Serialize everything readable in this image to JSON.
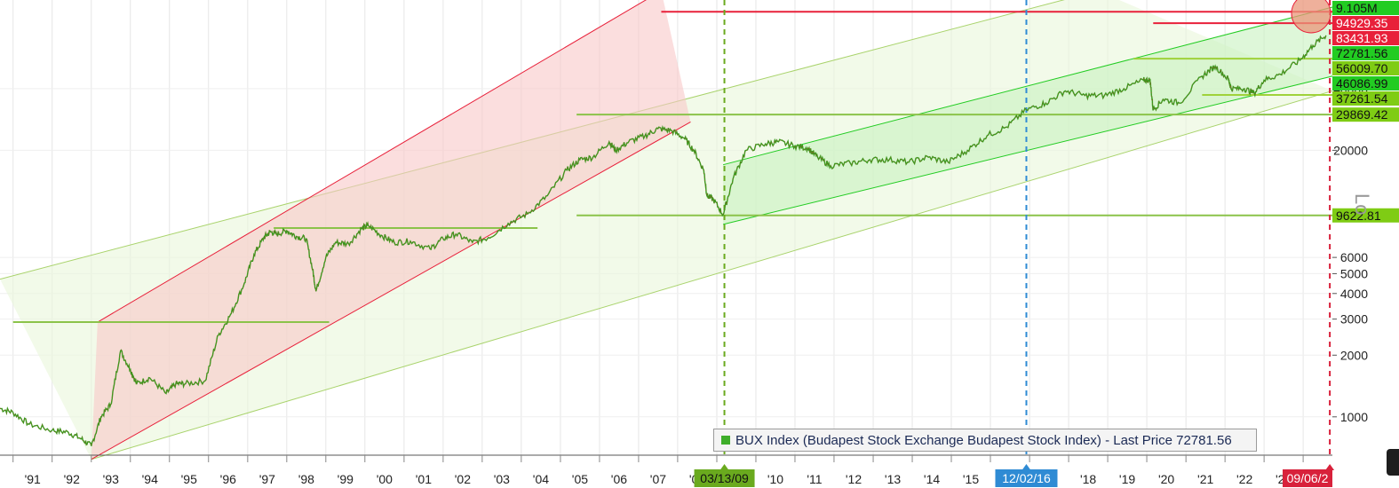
{
  "chart_data": {
    "type": "line",
    "title": "",
    "xlabel": "",
    "ylabel": "",
    "y_scale": "log",
    "ylim": [
      650,
      100000
    ],
    "xlim": [
      "1990-09-01",
      "2024-09-30"
    ],
    "grid": true,
    "legend": "bottom-center",
    "legend_text": "BUX Index (Budapest Stock Exchange Budapest Stock Index) - Last Price 72781.56",
    "y_axis_title_fragment": "Lo",
    "x_tick_labels": [
      "'91",
      "'92",
      "'93",
      "'94",
      "'95",
      "'96",
      "'97",
      "'98",
      "'99",
      "'00",
      "'01",
      "'02",
      "'03",
      "'04",
      "'05",
      "'06",
      "'07",
      "'08",
      "'10",
      "'11",
      "'12",
      "'13",
      "'14",
      "'15",
      "'17",
      "'18",
      "'19",
      "'20",
      "'21",
      "'22",
      "'23"
    ],
    "y_tick_labels": [
      "1000",
      "2000",
      "3000",
      "4000",
      "5000",
      "6000",
      "20000",
      "40000"
    ],
    "date_markers": [
      {
        "label": "03/13/09",
        "date": "2009-03-13",
        "color": "#6aaa1e"
      },
      {
        "label": "12/02/16",
        "date": "2016-12-02",
        "color": "#2f8bd4"
      },
      {
        "label": "09/06/2",
        "date": "2024-09-06",
        "color": "#d8213b"
      }
    ],
    "price_labels": [
      {
        "label": "9.105M",
        "value": 100000,
        "color": "#22cc22"
      },
      {
        "label": "94929.35",
        "value": 94929.35,
        "color": "#e8203a"
      },
      {
        "label": "83431.93",
        "value": 83431.93,
        "color": "#e8203a"
      },
      {
        "label": "72781.56",
        "value": 72781.56,
        "color": "#22cc22"
      },
      {
        "label": "56009.70",
        "value": 56009.7,
        "color": "#7fcc14"
      },
      {
        "label": "46086.99",
        "value": 46086.99,
        "color": "#22cc22"
      },
      {
        "label": "37261.54",
        "value": 37261.54,
        "color": "#7fcc14"
      },
      {
        "label": "29869.42",
        "value": 29869.42,
        "color": "#7fcc14"
      },
      {
        "label": "9622.81",
        "value": 9622.81,
        "color": "#7fcc14"
      }
    ],
    "horizontal_levels": [
      {
        "value": 94929.35,
        "from": "2007-08-01",
        "to": "2024-09-30",
        "color": "#e8203a"
      },
      {
        "value": 83431.93,
        "from": "2020-03-01",
        "to": "2024-09-30",
        "color": "#e8203a"
      },
      {
        "value": 56009.7,
        "from": "2019-09-01",
        "to": "2024-09-30",
        "color": "#9fd23a"
      },
      {
        "value": 37261.54,
        "from": "2021-06-01",
        "to": "2024-09-30",
        "color": "#9fd23a"
      },
      {
        "value": 29869.42,
        "from": "2005-06-01",
        "to": "2024-09-30",
        "color": "#8bc34a"
      },
      {
        "value": 9622.81,
        "from": "2005-06-01",
        "to": "2024-09-30",
        "color": "#8bc34a"
      },
      {
        "value": 8350,
        "from": "1997-09-01",
        "to": "2004-06-01",
        "color": "#8bc34a"
      },
      {
        "value": 2900,
        "from": "1991-01-01",
        "to": "1999-02-01",
        "color": "#8bc34a"
      }
    ],
    "channels": [
      {
        "name": "",
        "color": "#a9d36c",
        "fill": "#e9f6da",
        "upper": [
          [
            "1990-09-01",
            4700
          ],
          [
            "2018-10-01",
            120000
          ]
        ],
        "lower": [
          [
            "1993-01-01",
            620
          ],
          [
            "2024-09-30",
            39000
          ]
        ]
      },
      {
        "name": "",
        "color": "#e8203a",
        "fill": "#f9c8c8",
        "upper": [
          [
            "1993-03-01",
            2900
          ],
          [
            "2007-08-01",
            120000
          ]
        ],
        "lower": [
          [
            "1993-01-01",
            620
          ],
          [
            "2008-05-01",
            27500
          ]
        ]
      },
      {
        "name": "",
        "color": "#22cc22",
        "fill": "#c8f2c0",
        "upper": [
          [
            "2009-03-01",
            17000
          ],
          [
            "2024-09-30",
            100000
          ]
        ],
        "lower": [
          [
            "2009-03-01",
            8700
          ],
          [
            "2024-09-30",
            46000
          ]
        ]
      }
    ],
    "series": [
      {
        "name": "BUX Index",
        "x": [
          "1990-09-01",
          "1991-01-01",
          "1991-06-01",
          "1992-01-01",
          "1992-06-01",
          "1992-10-01",
          "1993-01-01",
          "1993-04-01",
          "1993-07-01",
          "1993-10-01",
          "1994-01-01",
          "1994-03-01",
          "1994-07-01",
          "1994-12-01",
          "1995-03-01",
          "1995-06-01",
          "1995-12-01",
          "1996-04-01",
          "1996-08-01",
          "1996-12-01",
          "1997-03-01",
          "1997-06-01",
          "1997-08-01",
          "1997-10-01",
          "1998-01-01",
          "1998-04-01",
          "1998-07-01",
          "1998-09-01",
          "1998-10-01",
          "1999-01-01",
          "1999-04-01",
          "1999-08-01",
          "1999-12-01",
          "2000-02-01",
          "2000-06-01",
          "2000-10-01",
          "2001-03-01",
          "2001-09-01",
          "2002-01-01",
          "2002-05-01",
          "2002-10-01",
          "2003-03-01",
          "2003-09-01",
          "2004-03-01",
          "2004-09-01",
          "2005-03-01",
          "2005-07-01",
          "2005-11-01",
          "2006-04-01",
          "2006-06-01",
          "2006-10-01",
          "2007-03-01",
          "2007-07-01",
          "2007-11-01",
          "2008-03-01",
          "2008-06-01",
          "2008-09-01",
          "2008-10-01",
          "2008-12-01",
          "2009-03-01",
          "2009-06-01",
          "2009-10-01",
          "2010-04-01",
          "2010-08-01",
          "2011-01-01",
          "2011-05-01",
          "2011-08-01",
          "2011-12-01",
          "2012-06-01",
          "2012-12-01",
          "2013-06-01",
          "2013-12-01",
          "2014-06-01",
          "2014-12-01",
          "2015-06-01",
          "2015-12-01",
          "2016-06-01",
          "2016-12-01",
          "2017-06-01",
          "2017-12-01",
          "2018-06-01",
          "2018-12-01",
          "2019-06-01",
          "2019-12-01",
          "2020-02-01",
          "2020-03-01",
          "2020-06-01",
          "2020-11-01",
          "2021-06-01",
          "2021-10-01",
          "2022-02-01",
          "2022-03-01",
          "2022-07-01",
          "2022-10-01",
          "2023-01-01",
          "2023-06-01",
          "2023-12-01",
          "2024-04-01",
          "2024-08-01"
        ],
        "values": [
          1100,
          1050,
          920,
          860,
          840,
          780,
          720,
          1000,
          1150,
          2100,
          1700,
          1450,
          1550,
          1300,
          1450,
          1450,
          1500,
          2500,
          3200,
          4500,
          6200,
          7500,
          8000,
          7800,
          8100,
          7600,
          7400,
          5200,
          4100,
          6000,
          7100,
          7000,
          8300,
          8600,
          7700,
          7100,
          7200,
          6600,
          7400,
          7800,
          7100,
          7500,
          8800,
          9800,
          12000,
          16000,
          18000,
          18500,
          22000,
          20000,
          22000,
          23500,
          25500,
          25000,
          23000,
          20000,
          16000,
          12000,
          11500,
          9700,
          14500,
          20000,
          21500,
          22000,
          21000,
          20500,
          18500,
          16800,
          17300,
          18000,
          18000,
          17500,
          18500,
          17500,
          20000,
          23600,
          26000,
          31500,
          34000,
          39000,
          37000,
          37000,
          40000,
          44000,
          44000,
          31500,
          35500,
          34000,
          46000,
          51500,
          44500,
          40000,
          40000,
          38000,
          44000,
          47000,
          55000,
          65000,
          72781.56
        ]
      }
    ]
  }
}
